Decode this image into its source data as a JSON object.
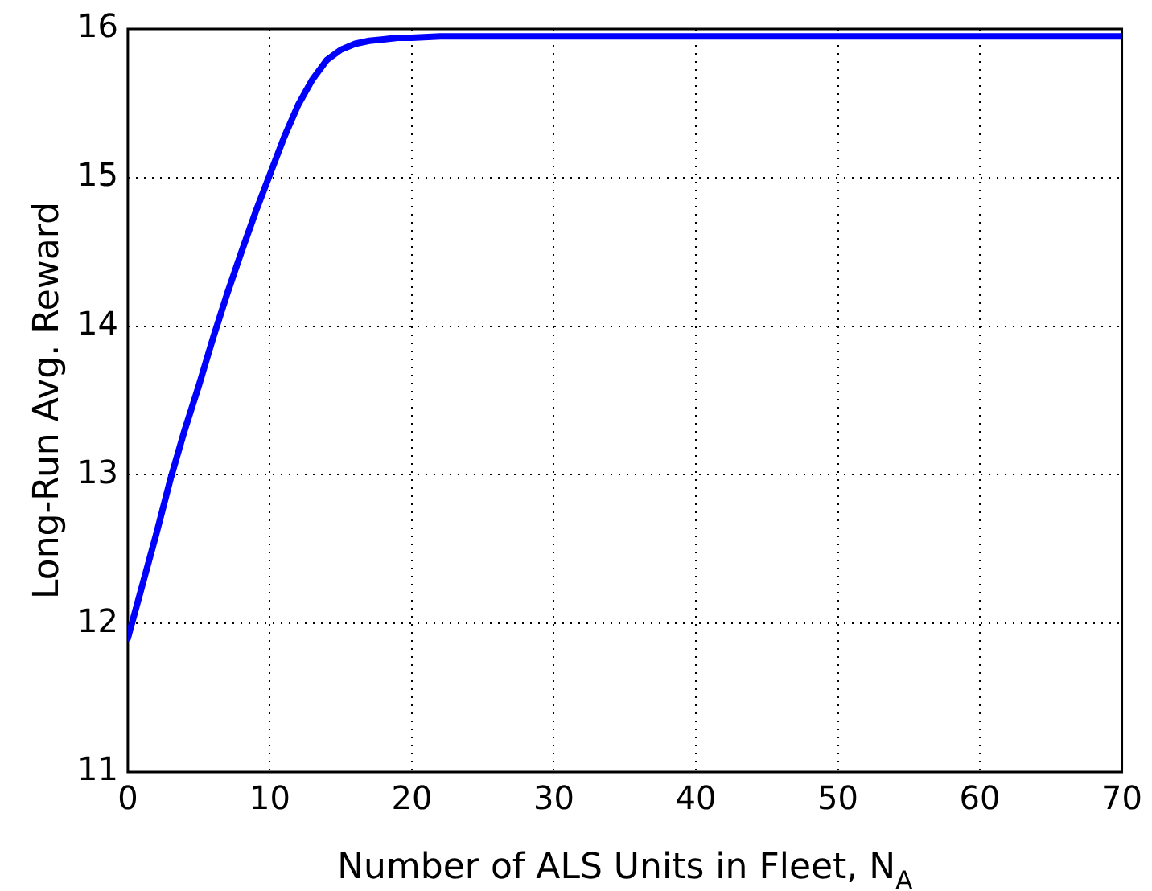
{
  "chart_data": {
    "type": "line",
    "xlabel": "Number of ALS Units in Fleet, N$_{A}$",
    "ylabel": "Long-Run Avg. Reward",
    "x": [
      0,
      1,
      2,
      3,
      4,
      5,
      6,
      7,
      8,
      9,
      10,
      11,
      12,
      13,
      14,
      15,
      16,
      17,
      18,
      19,
      20,
      22,
      25,
      30,
      40,
      50,
      60,
      70
    ],
    "series": [
      {
        "color": "#0000ff",
        "values": [
          11.9,
          12.25,
          12.6,
          12.97,
          13.3,
          13.6,
          13.92,
          14.22,
          14.5,
          14.77,
          15.02,
          15.27,
          15.49,
          15.66,
          15.79,
          15.86,
          15.9,
          15.92,
          15.93,
          15.94,
          15.94,
          15.95,
          15.95,
          15.95,
          15.95,
          15.95,
          15.95,
          15.95
        ]
      }
    ],
    "xlim": [
      0,
      70
    ],
    "xticks": [
      0,
      10,
      20,
      30,
      40,
      50,
      60,
      70
    ],
    "ylim": [
      11,
      16
    ],
    "yticks": [
      11,
      12,
      13,
      14,
      15,
      16
    ],
    "grid": true,
    "legend": false,
    "marker": "none",
    "line_style": "solid"
  }
}
